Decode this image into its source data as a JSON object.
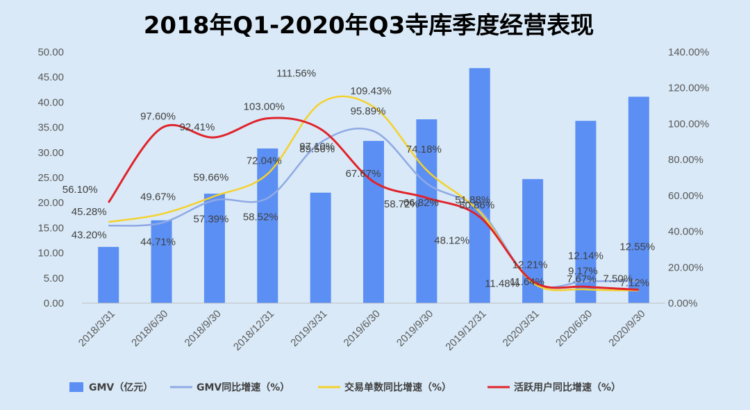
{
  "chart_data": {
    "type": "bar",
    "title": "2018年Q1-2020年Q3寺库季度经营表现",
    "categories": [
      "2018/3/31",
      "2018/6/30",
      "2018/9/30",
      "2018/12/31",
      "2019/3/31",
      "2019/6/30",
      "2019/9/30",
      "2019/12/31",
      "2020/3/31",
      "2020/6/30",
      "2020/9/30"
    ],
    "y_left": {
      "min": 0,
      "max": 50,
      "step": 5,
      "ticks": [
        "0.00",
        "5.00",
        "10.00",
        "15.00",
        "20.00",
        "25.00",
        "30.00",
        "35.00",
        "40.00",
        "45.00",
        "50.00"
      ]
    },
    "y_right": {
      "min": 0,
      "max": 140,
      "step": 20,
      "ticks": [
        "0.00%",
        "20.00%",
        "40.00%",
        "60.00%",
        "80.00%",
        "100.00%",
        "120.00%",
        "140.00%"
      ]
    },
    "series": [
      {
        "name": "GMV（亿元）",
        "type": "bar",
        "axis": "left",
        "color": "#5b8ff4",
        "values": [
          11.2,
          16.5,
          21.8,
          30.8,
          22.0,
          32.3,
          36.6,
          46.8,
          24.7,
          36.3,
          41.1
        ]
      },
      {
        "name": "GMV同比增速（%）",
        "type": "line",
        "axis": "right",
        "color": "#8fa9e4",
        "values": [
          43.2,
          44.71,
          57.39,
          58.52,
          89.56,
          95.89,
          66.82,
          51.88,
          11.64,
          12.14,
          12.55
        ],
        "labels": [
          "43.20%",
          "44.71%",
          "57.39%",
          "58.52%",
          "89.56%",
          "95.89%",
          "66.82%",
          "51.88%",
          "11.64%",
          "12.14%",
          "12.55%"
        ]
      },
      {
        "name": "交易单数同比增速（%）",
        "type": "line",
        "axis": "right",
        "color": "#f5d12c",
        "values": [
          45.28,
          49.67,
          59.66,
          72.04,
          111.56,
          109.43,
          74.18,
          50.86,
          11.48,
          7.67,
          7.12
        ],
        "labels": [
          "45.28%",
          "49.67%",
          "59.66%",
          "72.04%",
          "111.56%",
          "109.43%",
          "74.18%",
          "50.86%",
          "11.48%",
          "7.67%",
          "7.12%"
        ]
      },
      {
        "name": "活跃用户同比增速（%）",
        "type": "line",
        "axis": "right",
        "color": "#e0232a",
        "values": [
          56.1,
          97.6,
          92.41,
          103.0,
          97.1,
          67.67,
          58.72,
          48.12,
          12.21,
          9.17,
          7.5
        ],
        "labels": [
          "56.10%",
          "97.60%",
          "92.41%",
          "103.00%",
          "97.10%",
          "67.67%",
          "58.72%",
          "48.12%",
          "12.21%",
          "9.17%",
          "7.50%"
        ]
      }
    ],
    "legend_position": "bottom",
    "grid": false
  }
}
